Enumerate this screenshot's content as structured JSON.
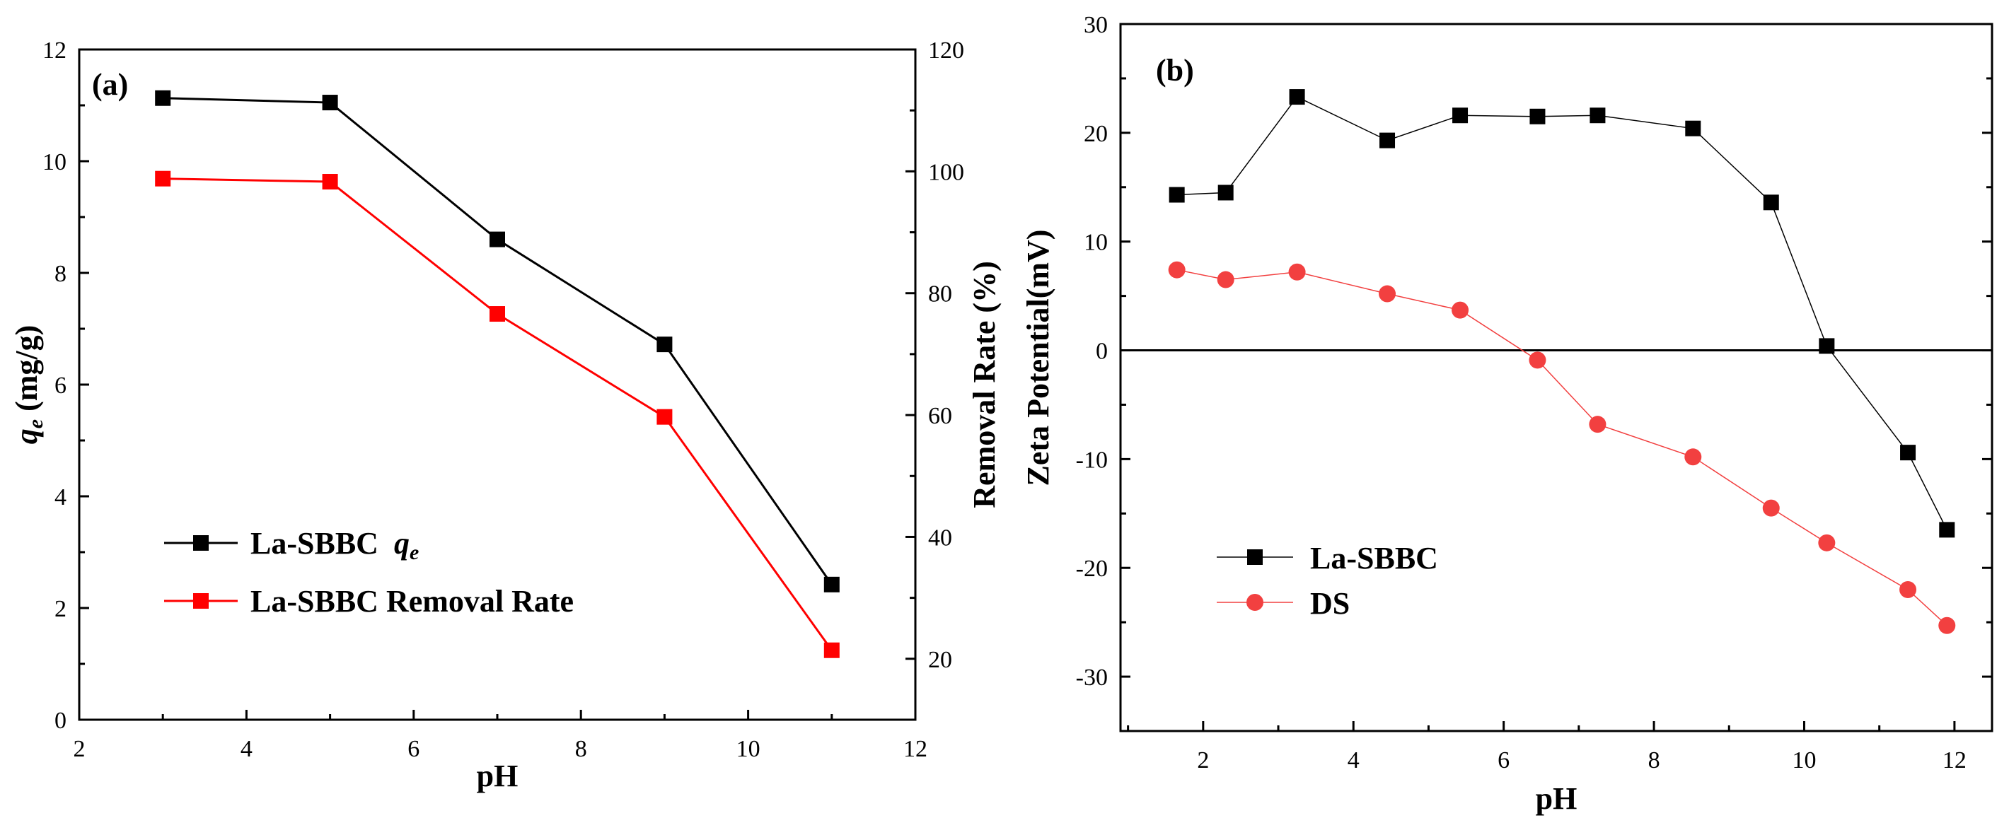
{
  "chart_data": [
    {
      "type": "line",
      "panel_label": "(a)",
      "xlabel": "pH",
      "ylabel_var": "q",
      "ylabel_sub": "e",
      "ylabel_unit": " (mg/g)",
      "y2label": "Removal Rate (%)",
      "xlim": [
        2,
        12
      ],
      "ylim": [
        0,
        12
      ],
      "y2lim": [
        10,
        120
      ],
      "xticks": [
        2,
        4,
        6,
        8,
        10,
        12
      ],
      "yticks": [
        0,
        2,
        4,
        6,
        8,
        10,
        12
      ],
      "y2ticks": [
        20,
        40,
        60,
        80,
        100,
        120
      ],
      "legend_position": "lower-left",
      "series": [
        {
          "name": "La-SBBC",
          "name_var": "q",
          "name_sub": "e",
          "axis": "left",
          "color": "#000000",
          "marker": "square",
          "x": [
            3,
            5,
            7,
            9,
            11
          ],
          "y": [
            11.13,
            11.05,
            8.6,
            6.72,
            2.42
          ]
        },
        {
          "name": "La-SBBC Removal Rate",
          "axis": "right",
          "color": "#ff0000",
          "marker": "square",
          "x": [
            3,
            5,
            7,
            9,
            11
          ],
          "y": [
            98.8,
            98.3,
            76.6,
            59.7,
            21.4
          ]
        }
      ]
    },
    {
      "type": "line",
      "panel_label": "(b)",
      "xlabel": "pH",
      "ylabel": "Zeta Potential(mV)",
      "xlim": [
        0.9,
        12.5
      ],
      "ylim": [
        -35,
        30
      ],
      "xticks": [
        2,
        4,
        6,
        8,
        10,
        12
      ],
      "yticks": [
        -30,
        -20,
        -10,
        0,
        10,
        20,
        30
      ],
      "zero_line": true,
      "legend_position": "lower-left",
      "series": [
        {
          "name": "La-SBBC",
          "color": "#000000",
          "marker": "square",
          "x": [
            1.65,
            2.3,
            3.25,
            4.45,
            5.42,
            6.45,
            7.25,
            8.52,
            9.56,
            10.3,
            11.38,
            11.9
          ],
          "y": [
            14.3,
            14.5,
            23.3,
            19.3,
            21.6,
            21.5,
            21.6,
            20.4,
            13.6,
            0.4,
            -9.4,
            -16.5
          ]
        },
        {
          "name": "DS",
          "color": "#f24040",
          "marker": "circle",
          "x": [
            1.65,
            2.3,
            3.25,
            4.45,
            5.42,
            6.45,
            7.25,
            8.52,
            9.56,
            10.3,
            11.38,
            11.9
          ],
          "y": [
            7.4,
            6.5,
            7.2,
            5.2,
            3.7,
            -0.9,
            -6.8,
            -9.8,
            -14.5,
            -17.7,
            -22.0,
            -25.3
          ]
        }
      ]
    }
  ]
}
